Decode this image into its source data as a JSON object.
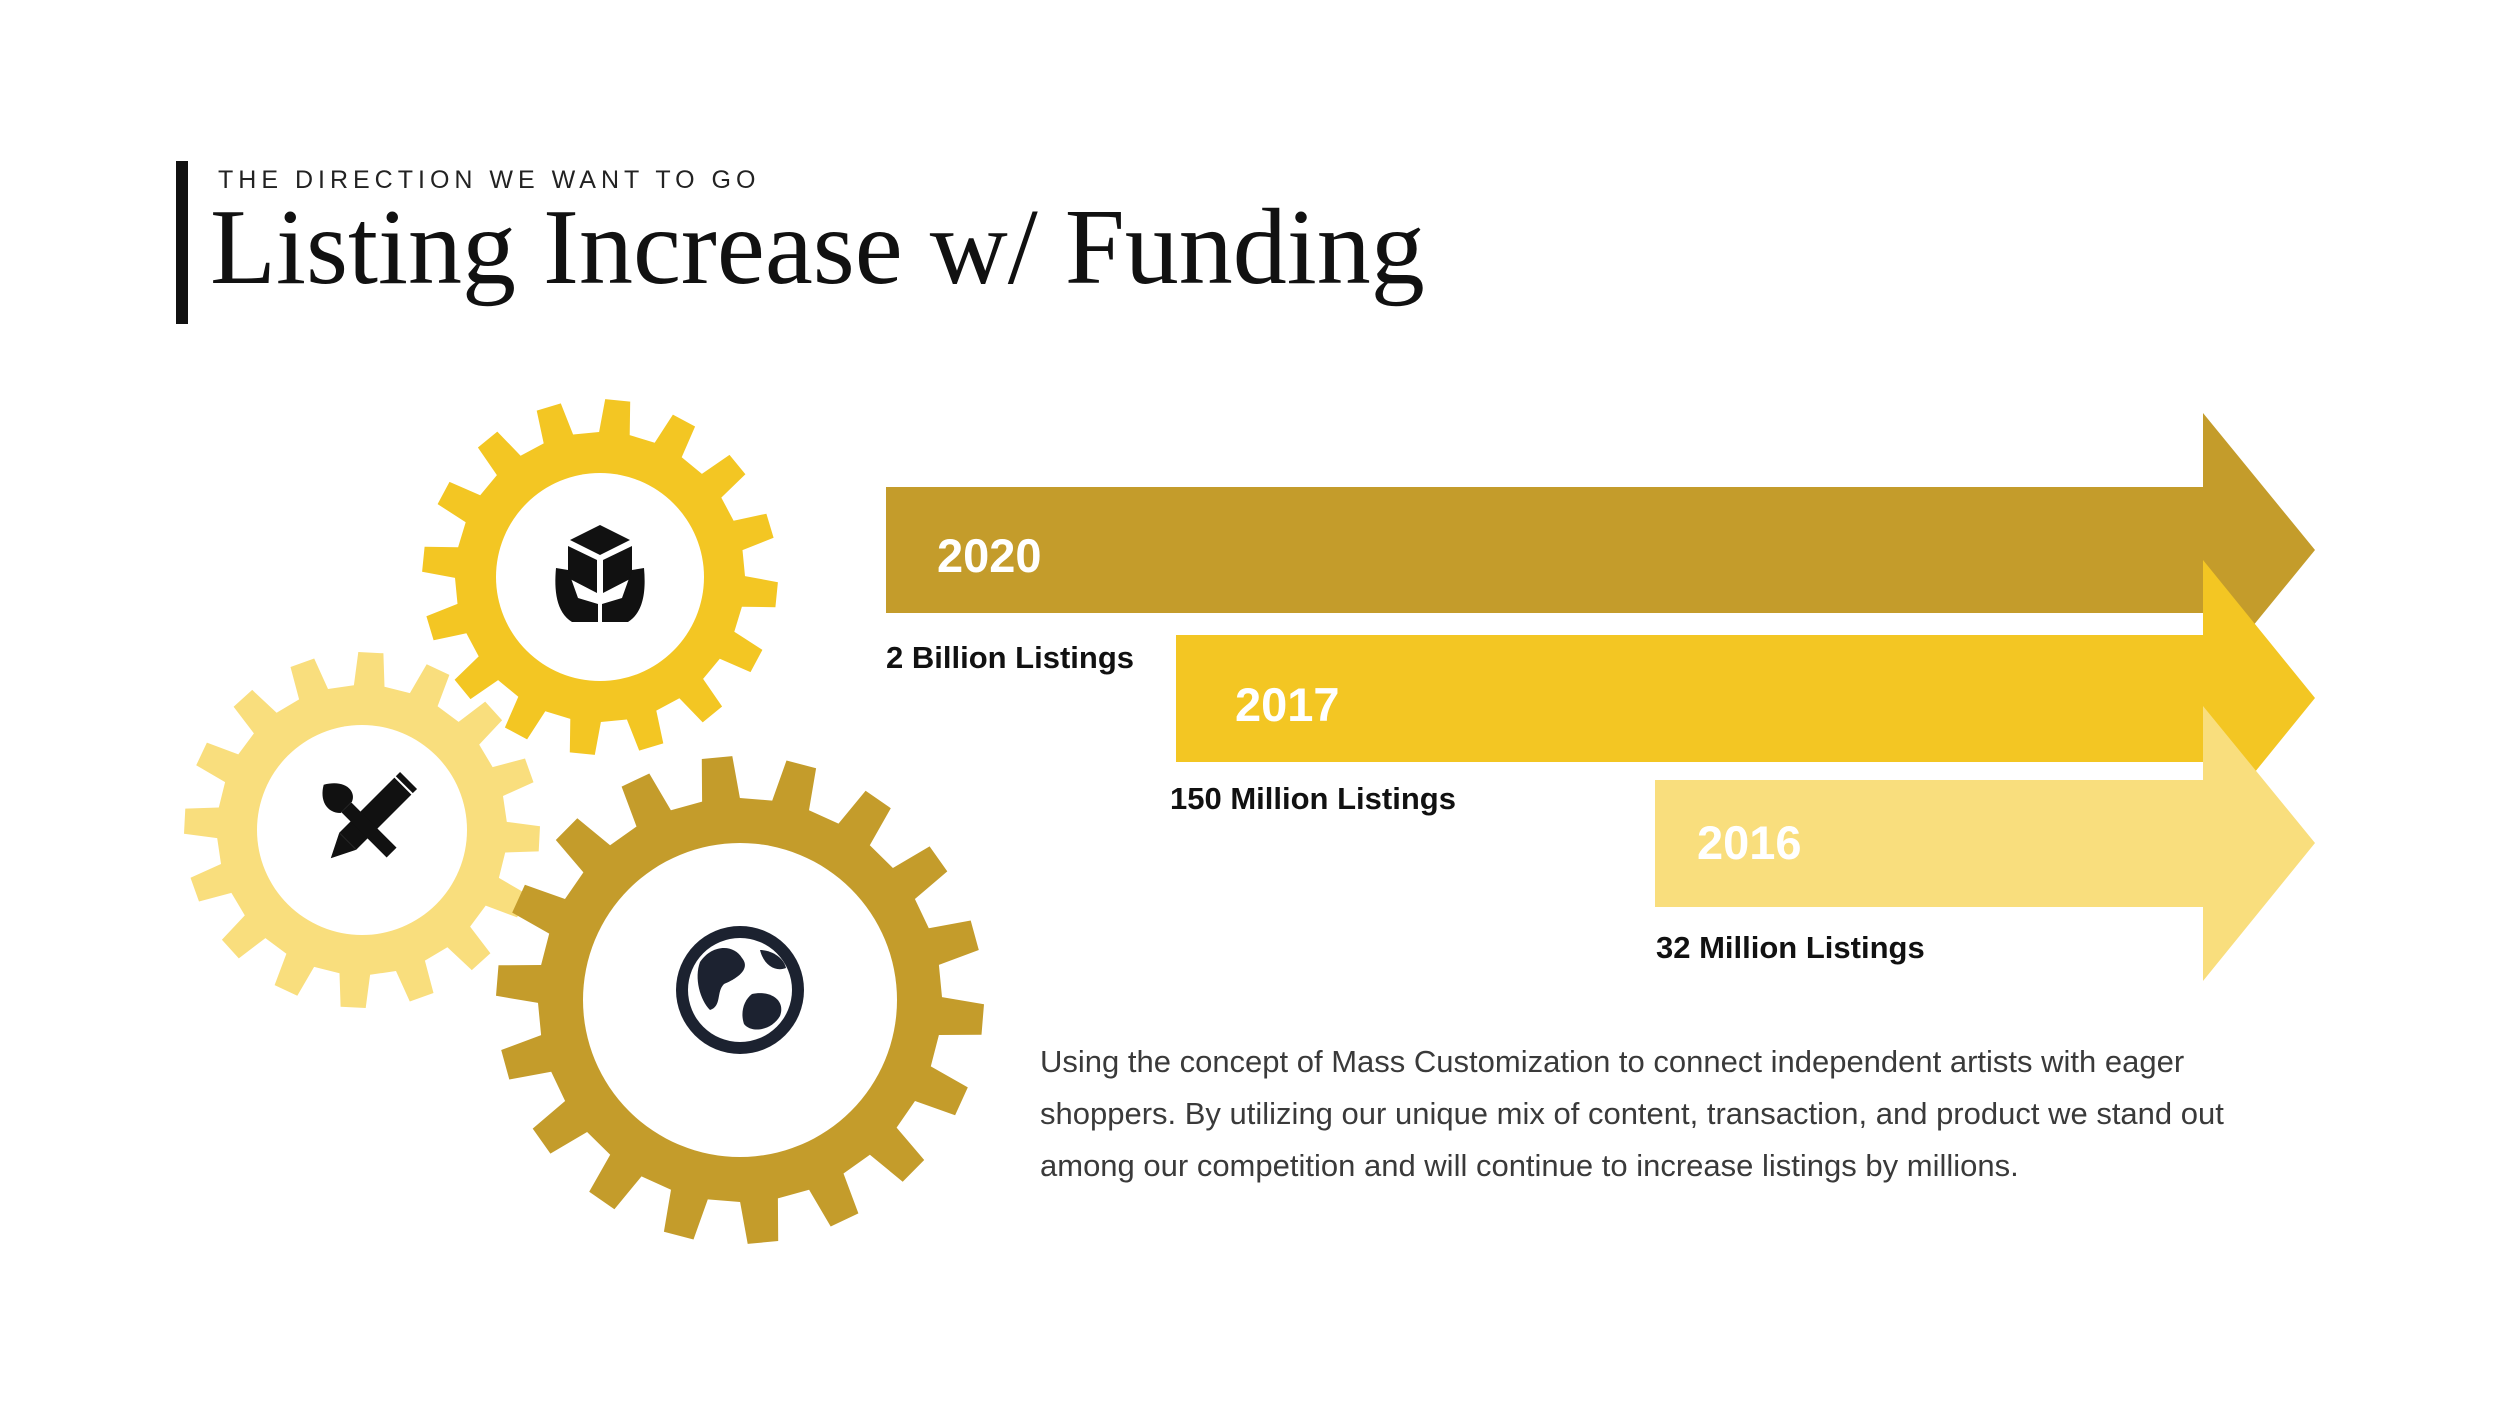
{
  "header": {
    "eyebrow": "THE DIRECTION WE WANT TO GO",
    "title": "Listing Increase w/ Funding"
  },
  "colors": {
    "dark_gold": "#C49C2B",
    "gold": "#F3C623",
    "light_gold": "#F9DE7D",
    "icon": "#1C2230"
  },
  "gears": [
    {
      "icon": "package-in-hands-icon",
      "color": "gold"
    },
    {
      "icon": "pencil-brush-tools-icon",
      "color": "light_gold"
    },
    {
      "icon": "globe-icon",
      "color": "dark_gold"
    }
  ],
  "arrows": [
    {
      "year": "2020",
      "listings": "2 Billion Listings",
      "color": "dark_gold"
    },
    {
      "year": "2017",
      "listings": "150 Million Listings",
      "color": "gold"
    },
    {
      "year": "2016",
      "listings": "32 Million Listings",
      "color": "light_gold"
    }
  ],
  "description": "Using the concept of Mass Customization to connect independent artists with eager shoppers. By utilizing our unique mix of content, transaction, and product we stand out among our competition and will continue to increase listings by millions."
}
